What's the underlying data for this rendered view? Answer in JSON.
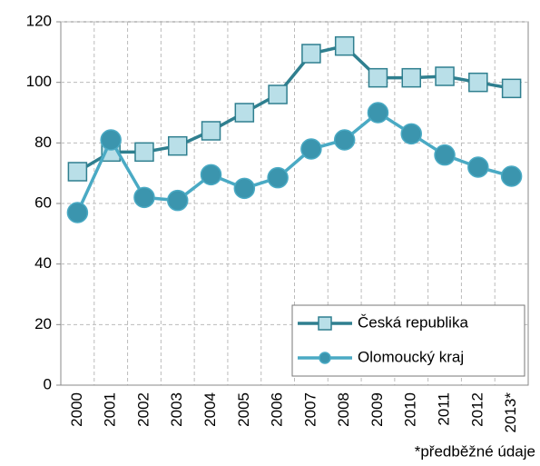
{
  "chart_data": {
    "type": "line",
    "categories": [
      "2000",
      "2001",
      "2002",
      "2003",
      "2004",
      "2005",
      "2006",
      "2007",
      "2008",
      "2009",
      "2010",
      "2011",
      "2012",
      "2013*"
    ],
    "series": [
      {
        "name": "Česká republika",
        "color": "#2f7f8f",
        "marker": "square",
        "marker_color": "#b9dfe8",
        "values": [
          70.5,
          77,
          77,
          79,
          84,
          90,
          96,
          109.5,
          112,
          101.5,
          101.5,
          102,
          100,
          98
        ]
      },
      {
        "name": "Olomoucký kraj",
        "color": "#4aaac4",
        "marker": "circle",
        "marker_color": "#3b95ae",
        "values": [
          57,
          81,
          62,
          61,
          69.5,
          65,
          68.5,
          78,
          81,
          90,
          83,
          76,
          72,
          69
        ]
      }
    ],
    "ylim": [
      0,
      120
    ],
    "yticks": [
      0,
      20,
      40,
      60,
      80,
      100,
      120
    ],
    "grid": true,
    "legend": "lower right",
    "footnote": "*předběžné údaje"
  }
}
